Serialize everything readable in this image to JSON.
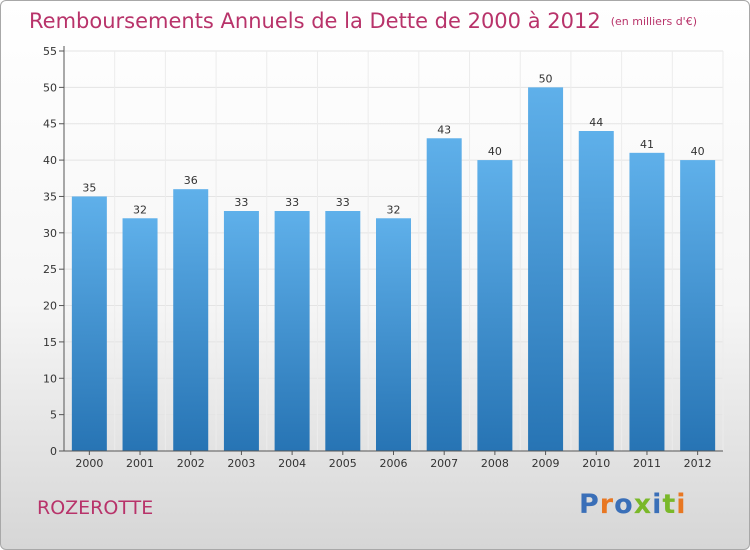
{
  "header": {
    "title": "Remboursements Annuels de la Dette de 2000 à 2012",
    "unit": "(en milliers d'€)"
  },
  "footer": {
    "commune": "ROZEROTTE",
    "logo": "Proxiti"
  },
  "colors": {
    "title": "#b8336a",
    "bar_top": "#5fb0ea",
    "bar_bottom": "#2774b4",
    "logo_letters": [
      "#3a6fb8",
      "#e87722",
      "#3a6fb8",
      "#7ab829",
      "#3a6fb8",
      "#7ab829",
      "#e87722"
    ]
  },
  "chart_data": {
    "type": "bar",
    "categories": [
      "2000",
      "2001",
      "2002",
      "2003",
      "2004",
      "2005",
      "2006",
      "2007",
      "2008",
      "2009",
      "2010",
      "2011",
      "2012"
    ],
    "values": [
      35,
      32,
      36,
      33,
      33,
      33,
      32,
      43,
      40,
      50,
      44,
      41,
      40
    ],
    "ylim": [
      0,
      55
    ],
    "yticks": [
      0,
      5,
      10,
      15,
      20,
      25,
      30,
      35,
      40,
      45,
      50,
      55
    ],
    "grid": true,
    "data_labels": true
  }
}
